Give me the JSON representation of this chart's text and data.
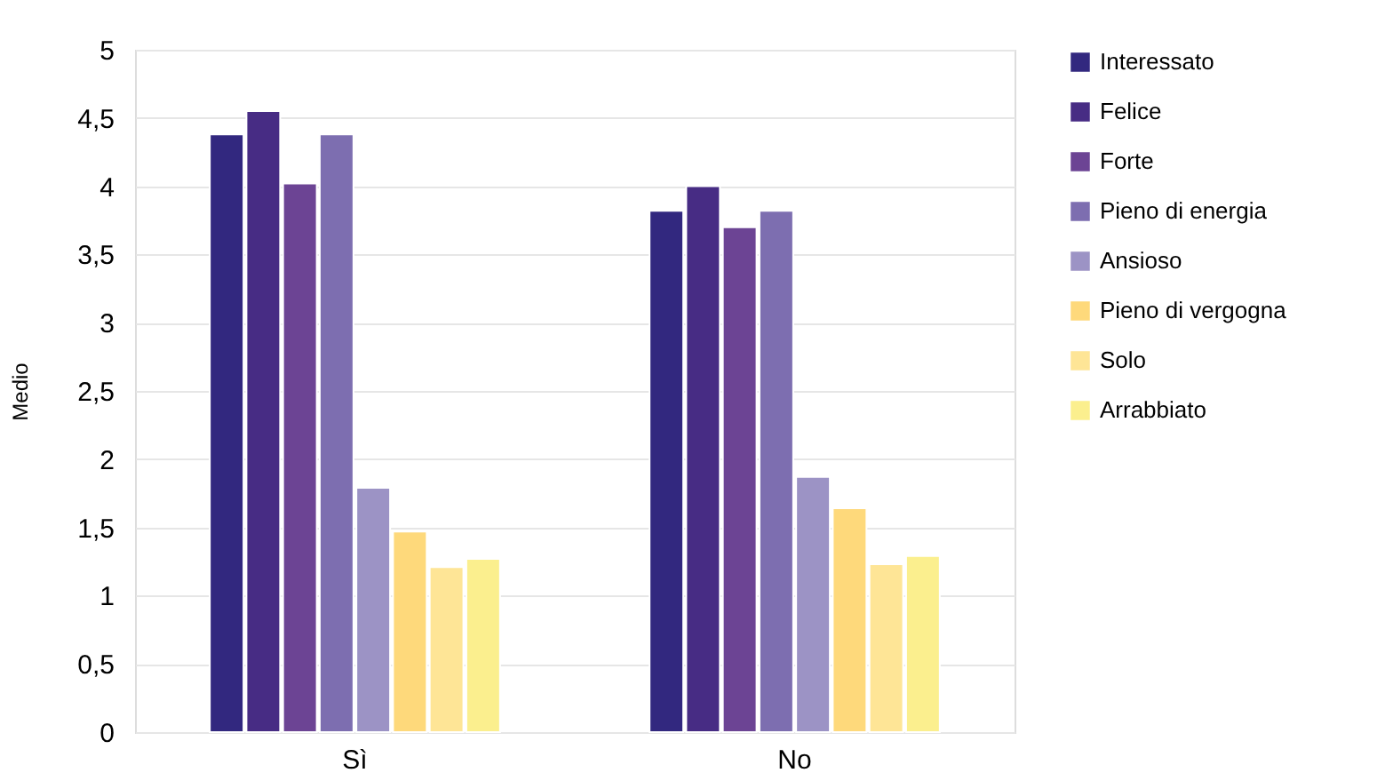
{
  "chart_data": {
    "type": "bar",
    "ylabel": "Medio",
    "categories": [
      "Sì",
      "No"
    ],
    "series": [
      {
        "name": "Interessato",
        "color": "#32287f",
        "values": [
          4.38,
          3.82
        ]
      },
      {
        "name": "Felice",
        "color": "#472c84",
        "values": [
          4.55,
          4.0
        ]
      },
      {
        "name": "Forte",
        "color": "#6c4494",
        "values": [
          4.02,
          3.7
        ]
      },
      {
        "name": "Pieno di energia",
        "color": "#7d6eb0",
        "values": [
          4.38,
          3.82
        ]
      },
      {
        "name": "Ansioso",
        "color": "#9c93c5",
        "values": [
          1.79,
          1.87
        ]
      },
      {
        "name": "Pieno di vergogna",
        "color": "#fed97b",
        "values": [
          1.47,
          1.64
        ]
      },
      {
        "name": "Solo",
        "color": "#fee596",
        "values": [
          1.21,
          1.23
        ]
      },
      {
        "name": "Arrabbiato",
        "color": "#fbef8e",
        "values": [
          1.27,
          1.29
        ]
      }
    ],
    "ylim": [
      0,
      5
    ],
    "yticks": [
      0,
      {
        "value": 0.5,
        "label": "0,5"
      },
      1,
      {
        "value": 1.5,
        "label": "1,5"
      },
      2,
      {
        "value": 2.5,
        "label": "2,5"
      },
      3,
      {
        "value": 3.5,
        "label": "3,5"
      },
      4,
      {
        "value": 4.5,
        "label": "4,5"
      },
      5
    ],
    "grid": "y",
    "legend": "right"
  }
}
